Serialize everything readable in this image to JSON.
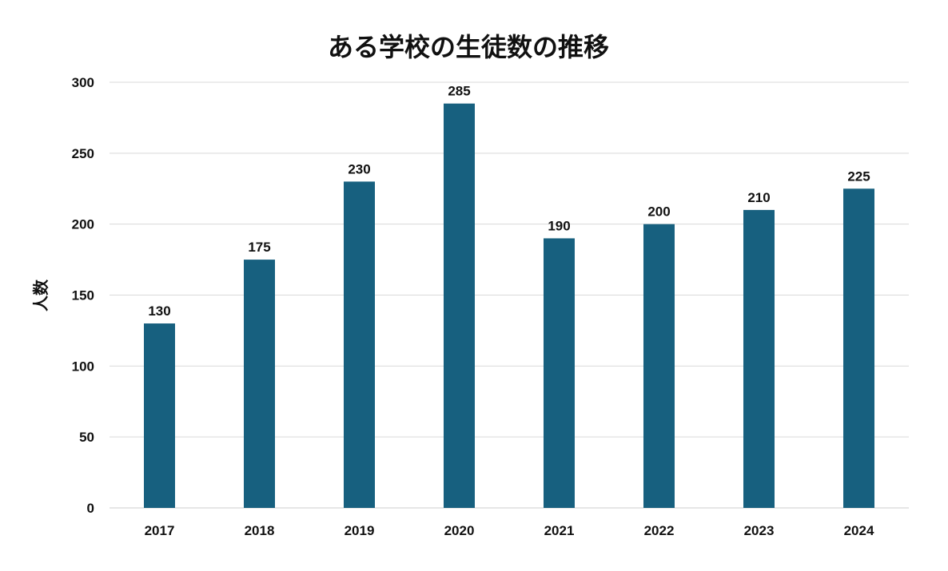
{
  "chart_data": {
    "type": "bar",
    "title": "ある学校の生徒数の推移",
    "xlabel": "",
    "ylabel": "人数",
    "categories": [
      "2017",
      "2018",
      "2019",
      "2020",
      "2021",
      "2022",
      "2023",
      "2024"
    ],
    "values": [
      130,
      175,
      230,
      285,
      190,
      200,
      210,
      225
    ],
    "data_labels": [
      "130",
      "175",
      "230",
      "285",
      "190",
      "200",
      "210",
      "225"
    ],
    "ylim": [
      0,
      300
    ],
    "yticks": [
      "0",
      "50",
      "100",
      "150",
      "200",
      "250",
      "300"
    ],
    "ytick_values": [
      0,
      50,
      100,
      150,
      200,
      250,
      300
    ],
    "grid": true,
    "legend": "none",
    "bar_color": "#17607f"
  }
}
